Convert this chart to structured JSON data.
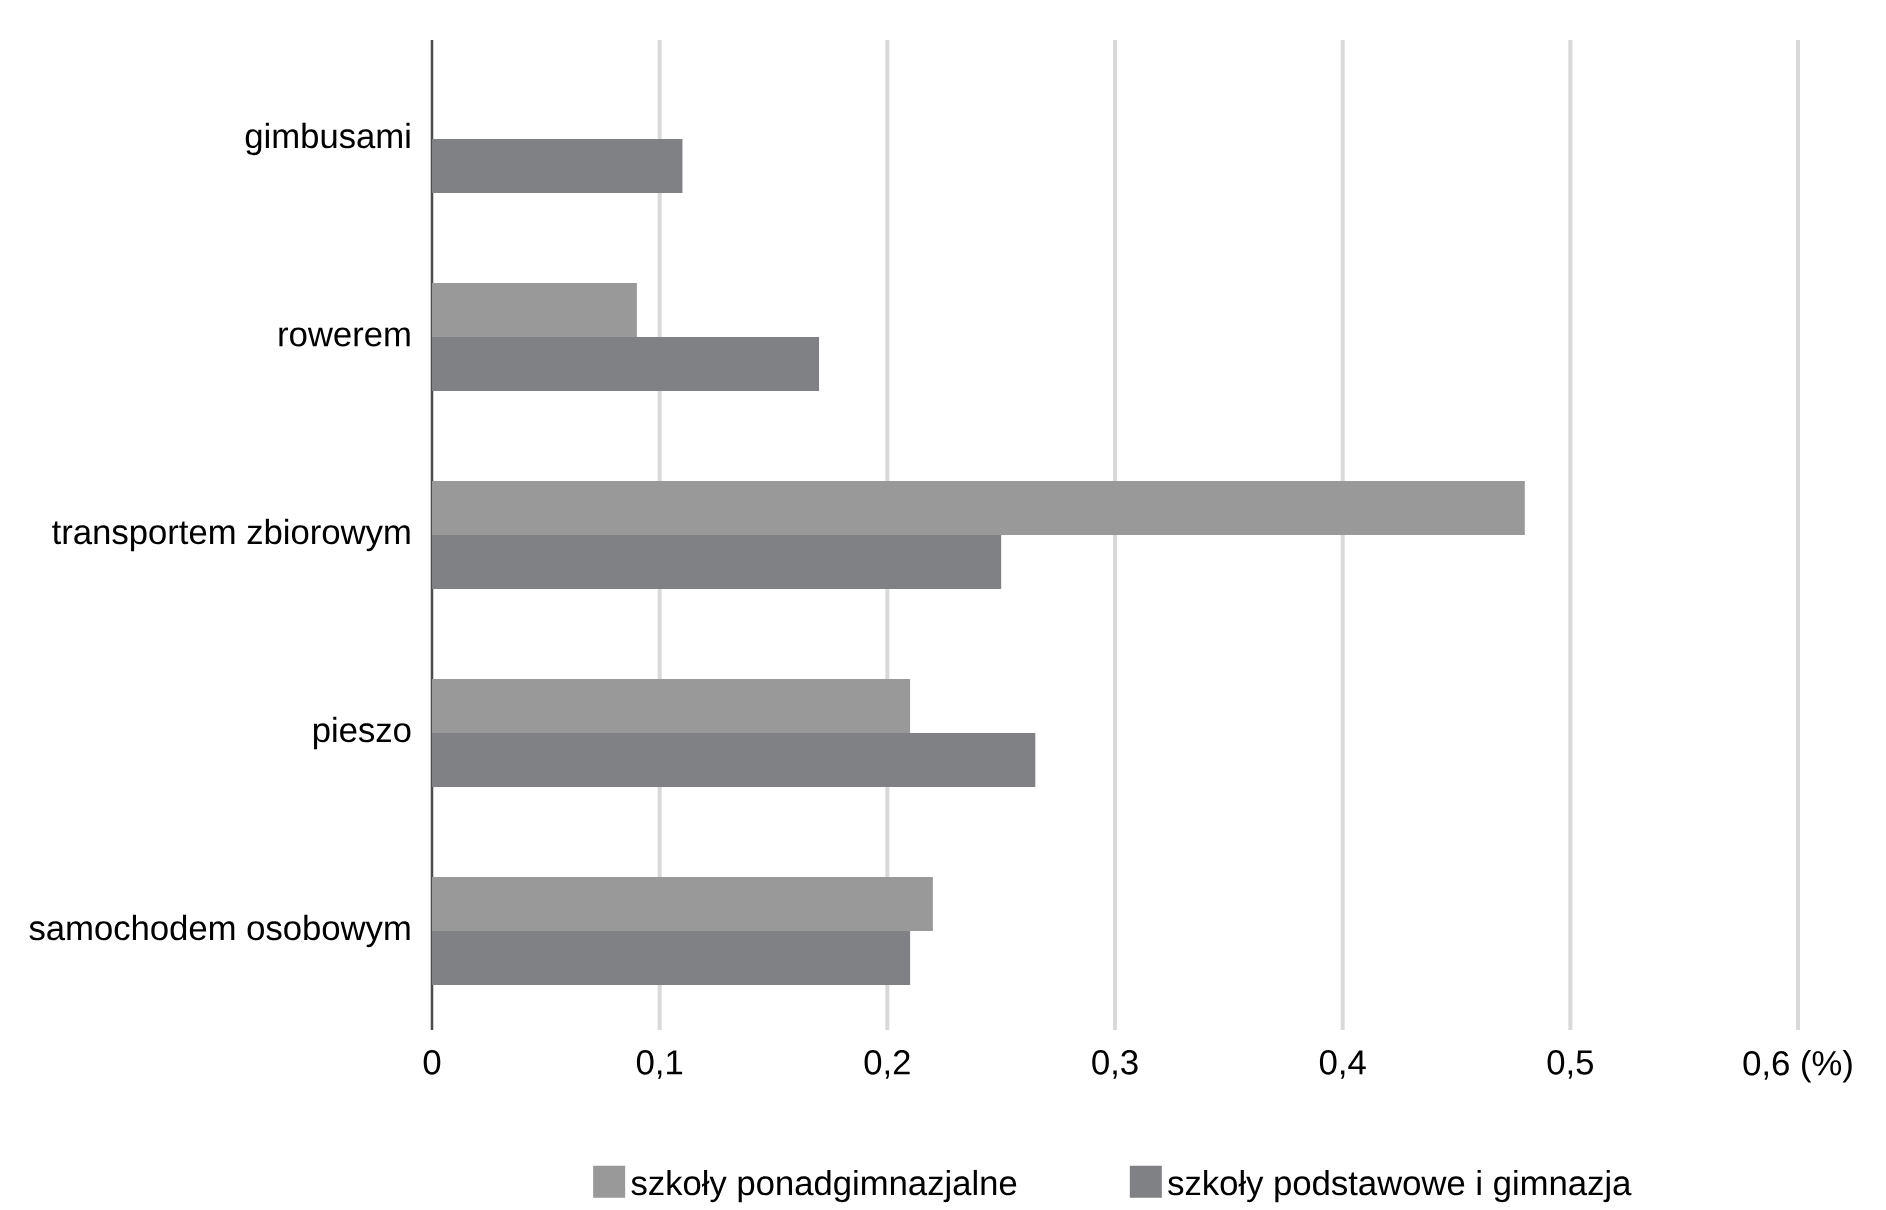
{
  "chart_data": {
    "type": "bar",
    "orientation": "horizontal",
    "categories": [
      "gimbusami",
      "rowerem",
      "transportem zbiorowym",
      "pieszo",
      "samochodem osobowym"
    ],
    "series": [
      {
        "name": "szkoły ponadgimnazjalne",
        "color": "#999999",
        "values": [
          null,
          0.09,
          0.48,
          0.21,
          0.22
        ]
      },
      {
        "name": "szkoły podstawowe i gimnazja",
        "color": "#808185",
        "values": [
          0.11,
          0.17,
          0.25,
          0.265,
          0.21
        ]
      }
    ],
    "xlim": [
      0,
      0.6
    ],
    "xticks": [
      0,
      {
        "value": 0.1,
        "label": "0,1"
      },
      {
        "value": 0.2,
        "label": "0,2"
      },
      {
        "value": 0.3,
        "label": "0,3"
      },
      {
        "value": 0.4,
        "label": "0,4"
      },
      {
        "value": 0.5,
        "label": "0,5"
      },
      {
        "value": 0.6,
        "label": "0,6 (%)"
      }
    ],
    "grid": "x",
    "legend": "bottom"
  }
}
